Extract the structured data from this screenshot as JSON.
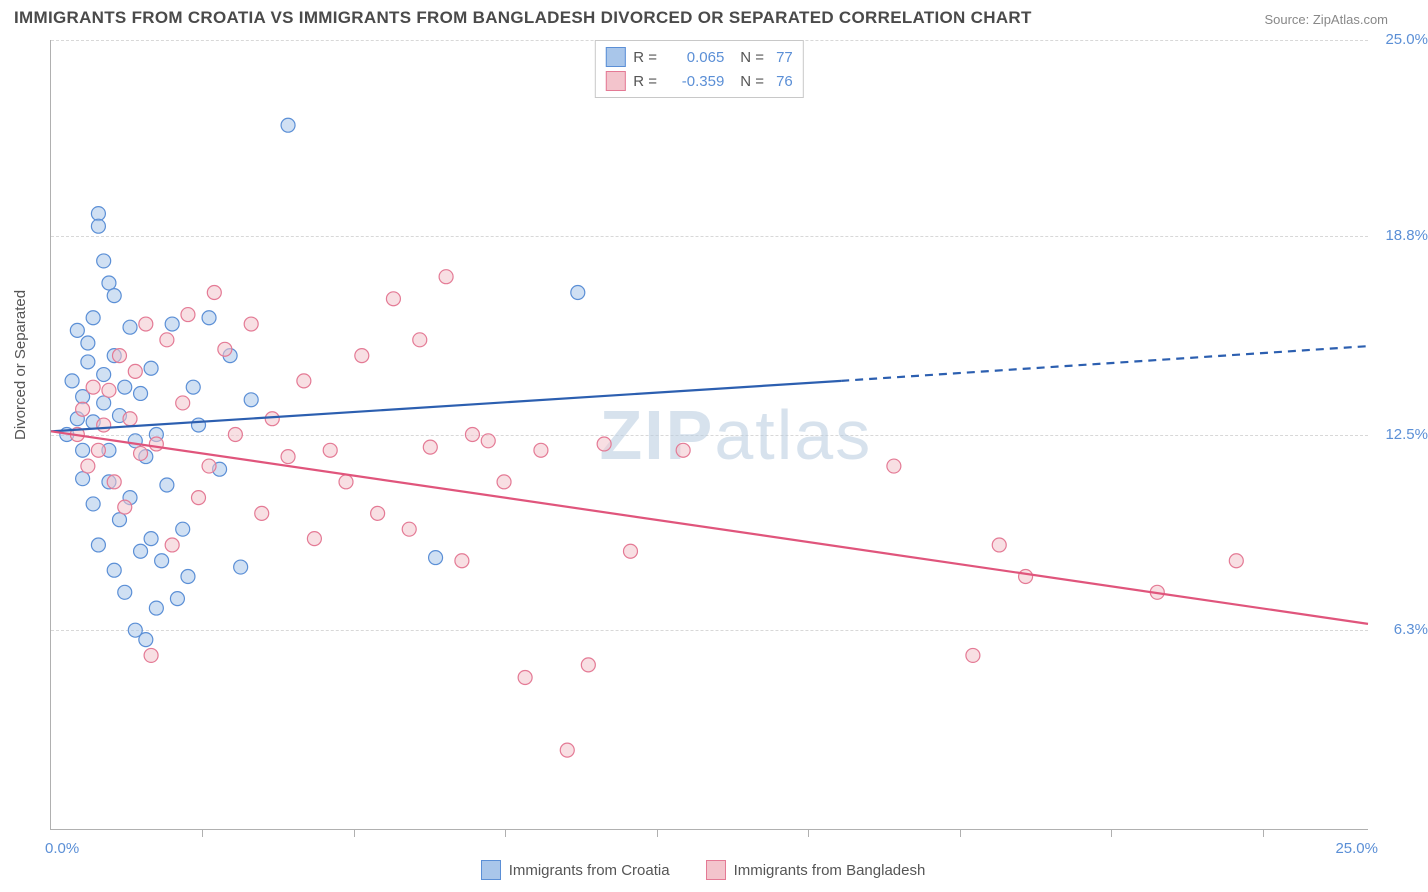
{
  "title": "IMMIGRANTS FROM CROATIA VS IMMIGRANTS FROM BANGLADESH DIVORCED OR SEPARATED CORRELATION CHART",
  "source_label": "Source: ZipAtlas.com",
  "ylabel": "Divorced or Separated",
  "watermark_a": "ZIP",
  "watermark_b": "atlas",
  "chart": {
    "type": "scatter",
    "background_color": "#ffffff",
    "grid_color": "#d8d8d8",
    "axis_color": "#b0b0b0",
    "label_color": "#5b8fd6",
    "text_color": "#555555",
    "title_color": "#4a4a4a",
    "xlim": [
      0,
      25
    ],
    "ylim": [
      0,
      25
    ],
    "xtick_positions_pct": [
      11.5,
      23,
      34.5,
      46,
      57.5,
      69,
      80.5,
      92
    ],
    "ytick_labels": [
      "6.3%",
      "12.5%",
      "18.8%",
      "25.0%"
    ],
    "ytick_positions": [
      6.3,
      12.5,
      18.8,
      25.0
    ],
    "x_origin_label": "0.0%",
    "x_max_label": "25.0%",
    "marker_radius": 7,
    "marker_opacity": 0.55,
    "line_width": 2.2,
    "series": [
      {
        "name": "Immigrants from Croatia",
        "fill": "#a9c6ea",
        "stroke": "#5b8fd6",
        "line_color": "#2c5fb0",
        "r_value": "0.065",
        "n_value": "77",
        "regression": {
          "x1": 0,
          "y1": 12.6,
          "x2_solid": 15.0,
          "y2_solid": 14.2,
          "x2_dash": 25.0,
          "y2_dash": 15.3
        },
        "points": [
          [
            0.3,
            12.5
          ],
          [
            0.4,
            14.2
          ],
          [
            0.5,
            13.0
          ],
          [
            0.5,
            15.8
          ],
          [
            0.6,
            12.0
          ],
          [
            0.6,
            11.1
          ],
          [
            0.6,
            13.7
          ],
          [
            0.7,
            14.8
          ],
          [
            0.7,
            15.4
          ],
          [
            0.8,
            12.9
          ],
          [
            0.8,
            10.3
          ],
          [
            0.8,
            16.2
          ],
          [
            0.9,
            19.5
          ],
          [
            0.9,
            19.1
          ],
          [
            0.9,
            9.0
          ],
          [
            1.0,
            18.0
          ],
          [
            1.0,
            13.5
          ],
          [
            1.0,
            14.4
          ],
          [
            1.1,
            17.3
          ],
          [
            1.1,
            12.0
          ],
          [
            1.1,
            11.0
          ],
          [
            1.2,
            15.0
          ],
          [
            1.2,
            8.2
          ],
          [
            1.2,
            16.9
          ],
          [
            1.3,
            13.1
          ],
          [
            1.3,
            9.8
          ],
          [
            1.4,
            14.0
          ],
          [
            1.4,
            7.5
          ],
          [
            1.5,
            10.5
          ],
          [
            1.5,
            15.9
          ],
          [
            1.6,
            6.3
          ],
          [
            1.6,
            12.3
          ],
          [
            1.7,
            8.8
          ],
          [
            1.7,
            13.8
          ],
          [
            1.8,
            6.0
          ],
          [
            1.8,
            11.8
          ],
          [
            1.9,
            9.2
          ],
          [
            1.9,
            14.6
          ],
          [
            2.0,
            7.0
          ],
          [
            2.0,
            12.5
          ],
          [
            2.1,
            8.5
          ],
          [
            2.2,
            10.9
          ],
          [
            2.3,
            16.0
          ],
          [
            2.4,
            7.3
          ],
          [
            2.5,
            9.5
          ],
          [
            2.6,
            8.0
          ],
          [
            2.7,
            14.0
          ],
          [
            2.8,
            12.8
          ],
          [
            3.0,
            16.2
          ],
          [
            3.2,
            11.4
          ],
          [
            3.4,
            15.0
          ],
          [
            3.6,
            8.3
          ],
          [
            3.8,
            13.6
          ],
          [
            4.5,
            22.3
          ],
          [
            7.3,
            8.6
          ],
          [
            10.0,
            17.0
          ]
        ]
      },
      {
        "name": "Immigrants from Bangladesh",
        "fill": "#f3c4cc",
        "stroke": "#e47a95",
        "line_color": "#e0557c",
        "r_value": "-0.359",
        "n_value": "76",
        "regression": {
          "x1": 0,
          "y1": 12.6,
          "x2_solid": 25.0,
          "y2_solid": 6.5,
          "x2_dash": 25.0,
          "y2_dash": 6.5
        },
        "points": [
          [
            0.5,
            12.5
          ],
          [
            0.6,
            13.3
          ],
          [
            0.7,
            11.5
          ],
          [
            0.8,
            14.0
          ],
          [
            0.9,
            12.0
          ],
          [
            1.0,
            12.8
          ],
          [
            1.1,
            13.9
          ],
          [
            1.2,
            11.0
          ],
          [
            1.3,
            15.0
          ],
          [
            1.4,
            10.2
          ],
          [
            1.5,
            13.0
          ],
          [
            1.6,
            14.5
          ],
          [
            1.7,
            11.9
          ],
          [
            1.8,
            16.0
          ],
          [
            1.9,
            5.5
          ],
          [
            2.0,
            12.2
          ],
          [
            2.2,
            15.5
          ],
          [
            2.3,
            9.0
          ],
          [
            2.5,
            13.5
          ],
          [
            2.6,
            16.3
          ],
          [
            2.8,
            10.5
          ],
          [
            3.0,
            11.5
          ],
          [
            3.1,
            17.0
          ],
          [
            3.3,
            15.2
          ],
          [
            3.5,
            12.5
          ],
          [
            3.8,
            16.0
          ],
          [
            4.0,
            10.0
          ],
          [
            4.2,
            13.0
          ],
          [
            4.5,
            11.8
          ],
          [
            4.8,
            14.2
          ],
          [
            5.0,
            9.2
          ],
          [
            5.3,
            12.0
          ],
          [
            5.6,
            11.0
          ],
          [
            5.9,
            15.0
          ],
          [
            6.2,
            10.0
          ],
          [
            6.5,
            16.8
          ],
          [
            6.8,
            9.5
          ],
          [
            7.0,
            15.5
          ],
          [
            7.2,
            12.1
          ],
          [
            7.5,
            17.5
          ],
          [
            7.8,
            8.5
          ],
          [
            8.0,
            12.5
          ],
          [
            8.3,
            12.3
          ],
          [
            8.6,
            11.0
          ],
          [
            9.0,
            4.8
          ],
          [
            9.3,
            12.0
          ],
          [
            9.8,
            2.5
          ],
          [
            10.2,
            5.2
          ],
          [
            10.5,
            12.2
          ],
          [
            11.0,
            8.8
          ],
          [
            12.0,
            12.0
          ],
          [
            16.0,
            11.5
          ],
          [
            17.5,
            5.5
          ],
          [
            18.0,
            9.0
          ],
          [
            18.5,
            8.0
          ],
          [
            21.0,
            7.5
          ],
          [
            22.5,
            8.5
          ]
        ]
      }
    ]
  },
  "legend_top": {
    "r_label": "R  =",
    "n_label": "N  ="
  }
}
